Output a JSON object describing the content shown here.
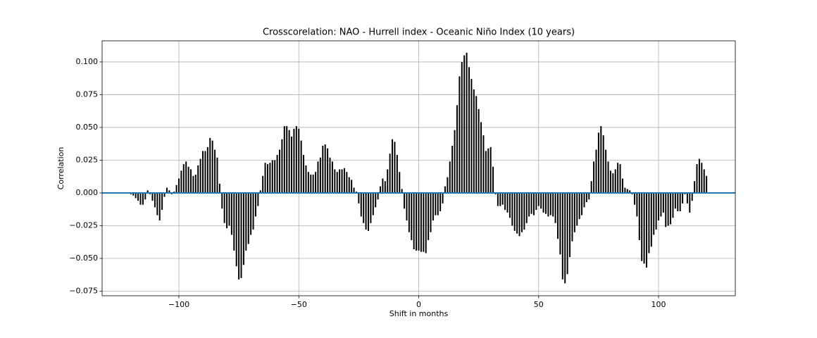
{
  "chart_data": {
    "type": "xcorr",
    "title": "Crosscorelation: NAO - Hurrell index - Oceanic Niño Index (10 years)",
    "xlabel": "Shift in months",
    "ylabel": "Correlation",
    "color": "#000000",
    "baseline_color": "#1f77b4",
    "grid": true,
    "xlim": [
      -132,
      132
    ],
    "ylim": [
      -0.0785,
      0.1161
    ],
    "xticks": [
      {
        "value": -100,
        "label": "−100"
      },
      {
        "value": -50,
        "label": "−50"
      },
      0,
      50,
      100
    ],
    "yticks": [
      {
        "value": -0.075,
        "label": "−0.075"
      },
      {
        "value": -0.05,
        "label": "−0.050"
      },
      {
        "value": -0.025,
        "label": "−0.025"
      },
      {
        "value": 0,
        "label": "0.000"
      },
      {
        "value": 0.025,
        "label": "0.025"
      },
      {
        "value": 0.05,
        "label": "0.050"
      },
      {
        "value": 0.075,
        "label": "0.075"
      },
      {
        "value": 0.1,
        "label": "0.100"
      }
    ],
    "x": [
      -120,
      -119,
      -118,
      -117,
      -116,
      -115,
      -114,
      -113,
      -112,
      -111,
      -110,
      -109,
      -108,
      -107,
      -106,
      -105,
      -104,
      -103,
      -102,
      -101,
      -100,
      -99,
      -98,
      -97,
      -96,
      -95,
      -94,
      -93,
      -92,
      -91,
      -90,
      -89,
      -88,
      -87,
      -86,
      -85,
      -84,
      -83,
      -82,
      -81,
      -80,
      -79,
      -78,
      -77,
      -76,
      -75,
      -74,
      -73,
      -72,
      -71,
      -70,
      -69,
      -68,
      -67,
      -66,
      -65,
      -64,
      -63,
      -62,
      -61,
      -60,
      -59,
      -58,
      -57,
      -56,
      -55,
      -54,
      -53,
      -52,
      -51,
      -50,
      -49,
      -48,
      -47,
      -46,
      -45,
      -44,
      -43,
      -42,
      -41,
      -40,
      -39,
      -38,
      -37,
      -36,
      -35,
      -34,
      -33,
      -32,
      -31,
      -30,
      -29,
      -28,
      -27,
      -26,
      -25,
      -24,
      -23,
      -22,
      -21,
      -20,
      -19,
      -18,
      -17,
      -16,
      -15,
      -14,
      -13,
      -12,
      -11,
      -10,
      -9,
      -8,
      -7,
      -6,
      -5,
      -4,
      -3,
      -2,
      -1,
      0,
      1,
      2,
      3,
      4,
      5,
      6,
      7,
      8,
      9,
      10,
      11,
      12,
      13,
      14,
      15,
      16,
      17,
      18,
      19,
      20,
      21,
      22,
      23,
      24,
      25,
      26,
      27,
      28,
      29,
      30,
      31,
      32,
      33,
      34,
      35,
      36,
      37,
      38,
      39,
      40,
      41,
      42,
      43,
      44,
      45,
      46,
      47,
      48,
      49,
      50,
      51,
      52,
      53,
      54,
      55,
      56,
      57,
      58,
      59,
      60,
      61,
      62,
      63,
      64,
      65,
      66,
      67,
      68,
      69,
      70,
      71,
      72,
      73,
      74,
      75,
      76,
      77,
      78,
      79,
      80,
      81,
      82,
      83,
      84,
      85,
      86,
      87,
      88,
      89,
      90,
      91,
      92,
      93,
      94,
      95,
      96,
      97,
      98,
      99,
      100,
      101,
      102,
      103,
      104,
      105,
      106,
      107,
      108,
      109,
      110,
      111,
      112,
      113,
      114,
      115,
      116,
      117,
      118,
      119,
      120
    ],
    "values": [
      -0.001,
      -0.002,
      -0.004,
      -0.006,
      -0.009,
      -0.009,
      -0.005,
      0.002,
      -0.001,
      -0.006,
      -0.011,
      -0.017,
      -0.021,
      -0.013,
      -0.003,
      0.004,
      0.002,
      -0.001,
      0.001,
      0.006,
      0.011,
      0.017,
      0.022,
      0.024,
      0.02,
      0.018,
      0.013,
      0.014,
      0.021,
      0.026,
      0.032,
      0.032,
      0.035,
      0.042,
      0.04,
      0.033,
      0.027,
      0.007,
      -0.012,
      -0.023,
      -0.027,
      -0.025,
      -0.032,
      -0.044,
      -0.056,
      -0.066,
      -0.065,
      -0.055,
      -0.044,
      -0.039,
      -0.032,
      -0.028,
      -0.018,
      -0.01,
      0.002,
      0.013,
      0.023,
      0.022,
      0.023,
      0.025,
      0.025,
      0.029,
      0.033,
      0.041,
      0.051,
      0.051,
      0.048,
      0.043,
      0.049,
      0.051,
      0.049,
      0.04,
      0.029,
      0.021,
      0.016,
      0.014,
      0.014,
      0.016,
      0.024,
      0.027,
      0.036,
      0.037,
      0.034,
      0.027,
      0.024,
      0.018,
      0.016,
      0.018,
      0.018,
      0.019,
      0.016,
      0.012,
      0.01,
      0.004,
      0.001,
      -0.008,
      -0.018,
      -0.023,
      -0.028,
      -0.029,
      -0.023,
      -0.017,
      -0.011,
      -0.005,
      0.005,
      0.011,
      0.009,
      0.018,
      0.03,
      0.041,
      0.039,
      0.029,
      0.016,
      0.003,
      -0.012,
      -0.021,
      -0.03,
      -0.036,
      -0.043,
      -0.044,
      -0.044,
      -0.045,
      -0.045,
      -0.046,
      -0.036,
      -0.03,
      -0.021,
      -0.017,
      -0.017,
      -0.014,
      -0.008,
      0.005,
      0.012,
      0.024,
      0.036,
      0.048,
      0.067,
      0.089,
      0.1,
      0.105,
      0.107,
      0.096,
      0.087,
      0.079,
      0.074,
      0.064,
      0.054,
      0.044,
      0.032,
      0.034,
      0.035,
      0.02,
      -0.001,
      -0.01,
      -0.01,
      -0.009,
      -0.013,
      -0.015,
      -0.019,
      -0.025,
      -0.029,
      -0.031,
      -0.033,
      -0.03,
      -0.028,
      -0.023,
      -0.018,
      -0.016,
      -0.017,
      -0.013,
      -0.01,
      -0.012,
      -0.015,
      -0.016,
      -0.018,
      -0.017,
      -0.018,
      -0.023,
      -0.035,
      -0.047,
      -0.066,
      -0.069,
      -0.062,
      -0.049,
      -0.037,
      -0.03,
      -0.025,
      -0.02,
      -0.017,
      -0.011,
      -0.007,
      -0.005,
      0.009,
      0.024,
      0.033,
      0.046,
      0.051,
      0.044,
      0.033,
      0.024,
      0.017,
      0.015,
      0.018,
      0.023,
      0.022,
      0.011,
      0.004,
      0.003,
      0.002,
      -0.001,
      -0.009,
      -0.018,
      -0.036,
      -0.052,
      -0.054,
      -0.057,
      -0.046,
      -0.041,
      -0.032,
      -0.028,
      -0.021,
      -0.018,
      -0.015,
      -0.026,
      -0.025,
      -0.024,
      -0.019,
      -0.012,
      -0.014,
      -0.014,
      -0.008,
      -0.001,
      -0.008,
      -0.015,
      -0.006,
      0.009,
      0.022,
      0.026,
      0.023,
      0.018,
      0.013
    ]
  }
}
